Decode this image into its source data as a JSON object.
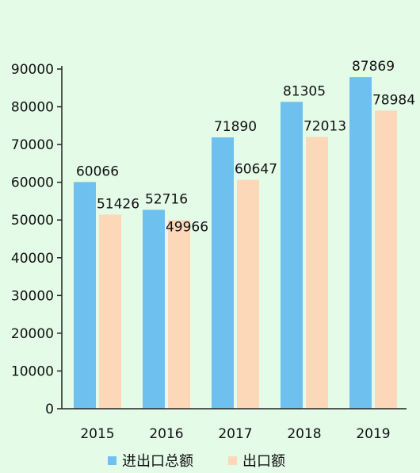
{
  "chart_data": {
    "type": "bar",
    "categories": [
      "2015",
      "2016",
      "2017",
      "2018",
      "2019"
    ],
    "series": [
      {
        "name": "进出口总额",
        "values": [
          60066,
          52716,
          71890,
          81305,
          87869
        ],
        "color": "#6ec0ef"
      },
      {
        "name": "出口额",
        "values": [
          51426,
          49966,
          60647,
          72013,
          78984
        ],
        "color": "#fcd7b8"
      }
    ],
    "y_ticks": [
      "0",
      "10000",
      "20000",
      "30000",
      "40000",
      "50000",
      "60000",
      "70000",
      "80000",
      "90000"
    ],
    "ylim": [
      0,
      90000
    ],
    "grid": false,
    "legend_position": "bottom",
    "axis_color": "#222222"
  }
}
